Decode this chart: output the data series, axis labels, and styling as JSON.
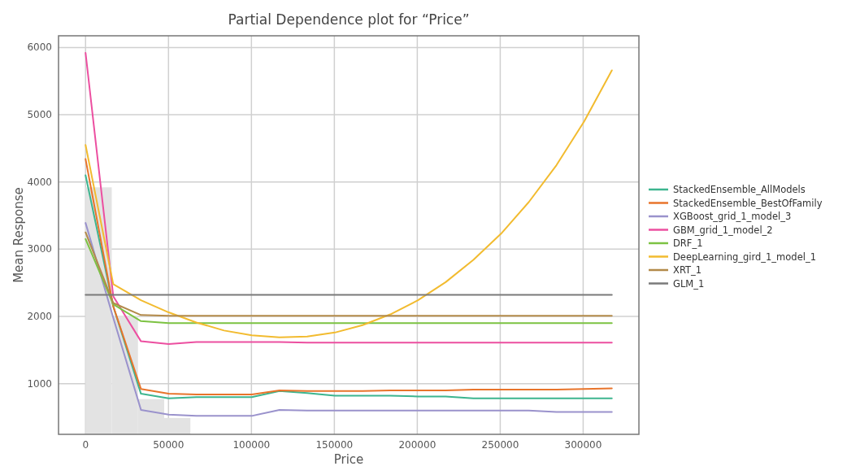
{
  "chart_data": {
    "type": "line",
    "title": "Partial Dependence plot for “Price”",
    "xlabel": "Price",
    "ylabel": "Mean Response",
    "x": [
      0,
      16700,
      33400,
      50100,
      66800,
      83500,
      100200,
      116900,
      133600,
      150300,
      167000,
      183700,
      200400,
      217100,
      233800,
      250500,
      267200,
      283900,
      300600,
      317300
    ],
    "xlim": [
      -16300,
      333600
    ],
    "ylim": [
      246,
      6174
    ],
    "xticks": [
      0,
      50000,
      100000,
      150000,
      200000,
      250000,
      300000
    ],
    "yticks": [
      1000,
      2000,
      3000,
      4000,
      5000,
      6000
    ],
    "grid": true,
    "legend": "right",
    "line_style": "solid",
    "marker": "none",
    "series": [
      {
        "type": "histogram",
        "color": "#e3e3e3",
        "bins": [
          0,
          15800,
          31600,
          47400,
          63200
        ],
        "values": [
          3920,
          2010,
          770,
          490
        ]
      },
      {
        "name": "StackedEnsemble_AllModels",
        "color": "#3db58f",
        "values": [
          4100,
          2150,
          850,
          780,
          800,
          800,
          800,
          890,
          860,
          820,
          820,
          820,
          810,
          810,
          780,
          780,
          780,
          780,
          780,
          780
        ]
      },
      {
        "name": "StackedEnsemble_BestOfFamily",
        "color": "#e8742b",
        "values": [
          4340,
          2150,
          920,
          850,
          840,
          840,
          840,
          900,
          890,
          890,
          890,
          900,
          900,
          900,
          910,
          910,
          910,
          910,
          920,
          930
        ]
      },
      {
        "name": "XGBoost_grid_1_model_3",
        "color": "#9a92cc",
        "values": [
          3390,
          1980,
          610,
          540,
          520,
          520,
          520,
          610,
          600,
          600,
          600,
          600,
          600,
          600,
          600,
          600,
          600,
          580,
          580,
          580
        ]
      },
      {
        "name": "GBM_grid_1_model_2",
        "color": "#ec4fa0",
        "values": [
          5920,
          2300,
          1630,
          1590,
          1620,
          1620,
          1620,
          1620,
          1610,
          1610,
          1610,
          1610,
          1610,
          1610,
          1610,
          1610,
          1610,
          1610,
          1610,
          1610
        ]
      },
      {
        "name": "DRF_1",
        "color": "#7cc242",
        "values": [
          3150,
          2180,
          1930,
          1900,
          1900,
          1900,
          1900,
          1900,
          1900,
          1900,
          1900,
          1900,
          1900,
          1900,
          1900,
          1900,
          1900,
          1900,
          1900,
          1900
        ]
      },
      {
        "name": "DeepLearning_gird_1_model_1",
        "color": "#f2bb2f",
        "values": [
          4550,
          2480,
          2240,
          2060,
          1910,
          1790,
          1720,
          1690,
          1700,
          1760,
          1870,
          2030,
          2240,
          2510,
          2840,
          3230,
          3700,
          4250,
          4900,
          5660
        ]
      },
      {
        "name": "XRT_1",
        "color": "#b38a4a",
        "values": [
          3250,
          2200,
          2020,
          2010,
          2010,
          2010,
          2010,
          2010,
          2010,
          2010,
          2010,
          2010,
          2010,
          2010,
          2010,
          2010,
          2010,
          2010,
          2010,
          2010
        ]
      },
      {
        "name": "GLM_1",
        "color": "#7a7a7a",
        "values": [
          2320,
          2320,
          2320,
          2320,
          2320,
          2320,
          2320,
          2320,
          2320,
          2320,
          2320,
          2320,
          2320,
          2320,
          2320,
          2320,
          2320,
          2320,
          2320,
          2320
        ]
      }
    ]
  }
}
